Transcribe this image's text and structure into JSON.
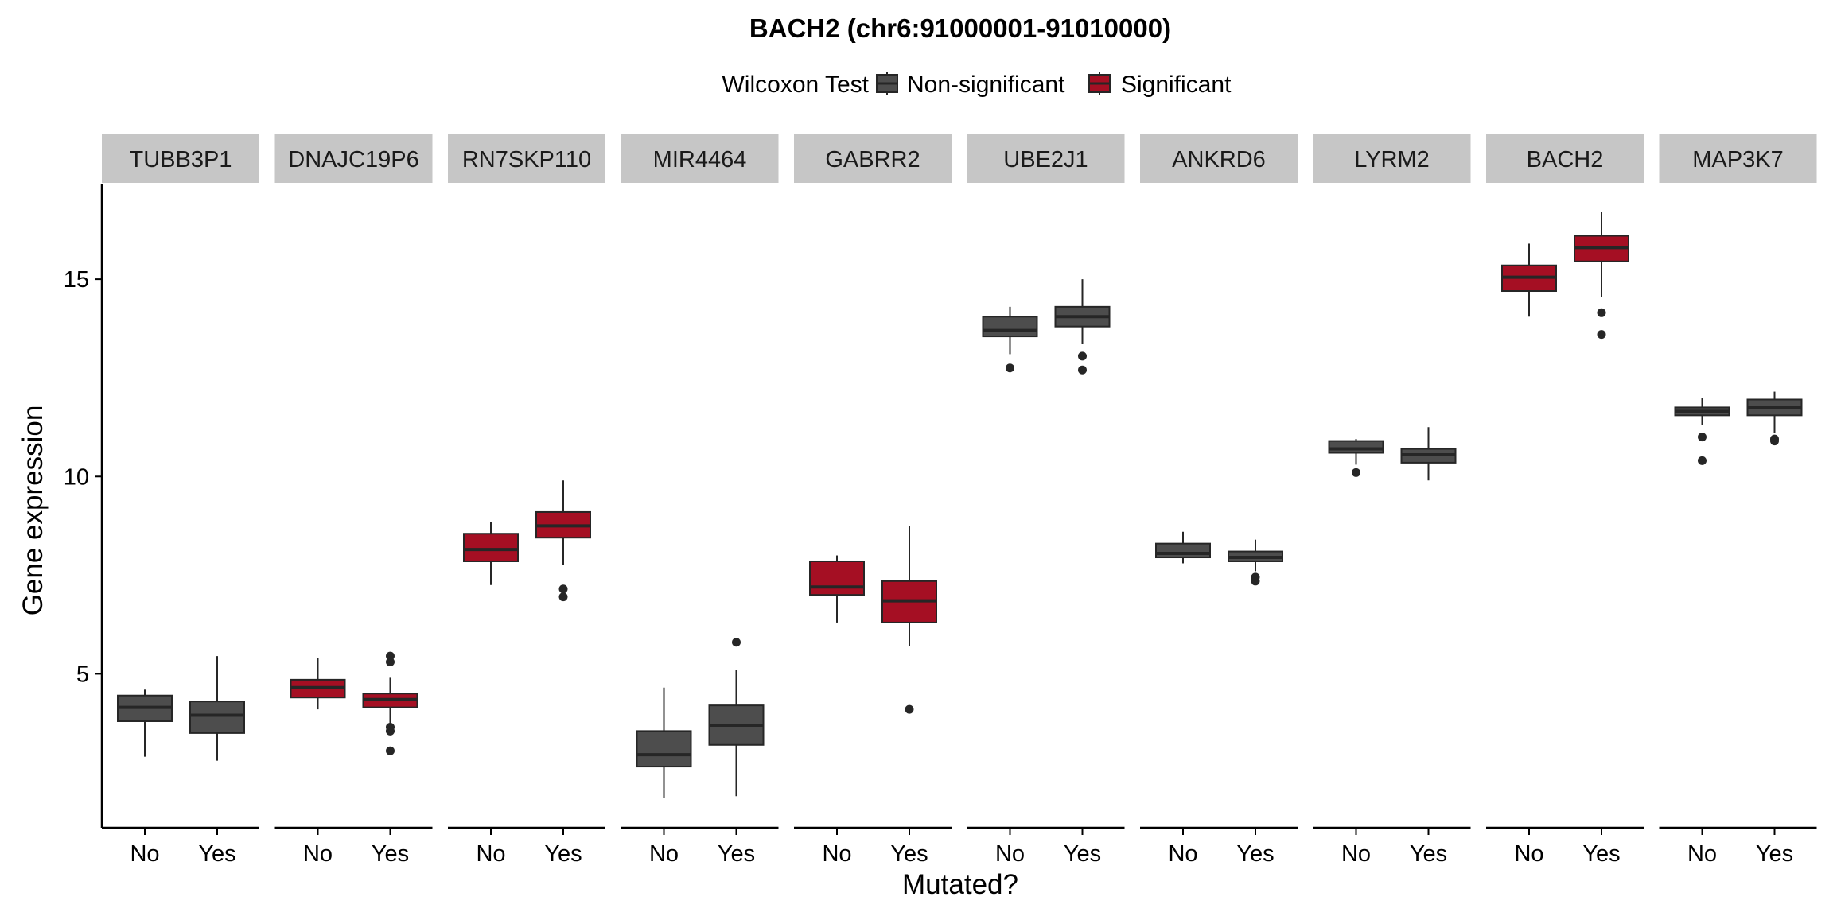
{
  "chart_data": {
    "type": "boxplot",
    "title": "BACH2 (chr6:91000001-91010000)",
    "xlabel": "Mutated?",
    "ylabel": "Gene expression",
    "ylim": [
      1.1,
      17.4
    ],
    "yticks": [
      5,
      10,
      15
    ],
    "ytick_labels": [
      "5",
      "10",
      "15"
    ],
    "grid": false,
    "legend": {
      "title": "Wilcoxon Test",
      "position": "top",
      "items": [
        {
          "label": "Non-significant",
          "color": "#4d4d4d"
        },
        {
          "label": "Significant",
          "color": "#a50f23"
        }
      ]
    },
    "categories": [
      "No",
      "Yes"
    ],
    "panels": [
      {
        "label": "TUBB3P1",
        "significant": false,
        "boxes": [
          {
            "category": "No",
            "min": 2.9,
            "q1": 3.8,
            "median": 4.15,
            "q3": 4.45,
            "max": 4.6,
            "outliers": []
          },
          {
            "category": "Yes",
            "min": 2.8,
            "q1": 3.5,
            "median": 3.95,
            "q3": 4.3,
            "max": 5.45,
            "outliers": []
          }
        ]
      },
      {
        "label": "DNAJC19P6",
        "significant": true,
        "boxes": [
          {
            "category": "No",
            "min": 4.1,
            "q1": 4.4,
            "median": 4.65,
            "q3": 4.85,
            "max": 5.4,
            "outliers": []
          },
          {
            "category": "Yes",
            "min": 3.7,
            "q1": 4.15,
            "median": 4.35,
            "q3": 4.5,
            "max": 4.9,
            "outliers": [
              5.45,
              5.3,
              3.65,
              3.55,
              3.05
            ]
          }
        ]
      },
      {
        "label": "RN7SKP110",
        "significant": true,
        "boxes": [
          {
            "category": "No",
            "min": 7.25,
            "q1": 7.85,
            "median": 8.15,
            "q3": 8.55,
            "max": 8.85,
            "outliers": []
          },
          {
            "category": "Yes",
            "min": 7.75,
            "q1": 8.45,
            "median": 8.75,
            "q3": 9.1,
            "max": 9.9,
            "outliers": [
              7.15,
              6.95
            ]
          }
        ]
      },
      {
        "label": "MIR4464",
        "significant": false,
        "boxes": [
          {
            "category": "No",
            "min": 1.85,
            "q1": 2.65,
            "median": 2.95,
            "q3": 3.55,
            "max": 4.65,
            "outliers": []
          },
          {
            "category": "Yes",
            "min": 1.9,
            "q1": 3.2,
            "median": 3.7,
            "q3": 4.2,
            "max": 5.1,
            "outliers": [
              5.8
            ]
          }
        ]
      },
      {
        "label": "GABRR2",
        "significant": true,
        "boxes": [
          {
            "category": "No",
            "min": 6.3,
            "q1": 7.0,
            "median": 7.2,
            "q3": 7.85,
            "max": 8.0,
            "outliers": []
          },
          {
            "category": "Yes",
            "min": 5.7,
            "q1": 6.3,
            "median": 6.85,
            "q3": 7.35,
            "max": 8.75,
            "outliers": [
              4.1
            ]
          }
        ]
      },
      {
        "label": "UBE2J1",
        "significant": false,
        "boxes": [
          {
            "category": "No",
            "min": 13.1,
            "q1": 13.55,
            "median": 13.7,
            "q3": 14.05,
            "max": 14.3,
            "outliers": [
              12.75
            ]
          },
          {
            "category": "Yes",
            "min": 13.35,
            "q1": 13.8,
            "median": 14.05,
            "q3": 14.3,
            "max": 15.0,
            "outliers": [
              13.05,
              12.7
            ]
          }
        ]
      },
      {
        "label": "ANKRD6",
        "significant": false,
        "boxes": [
          {
            "category": "No",
            "min": 7.8,
            "q1": 7.95,
            "median": 8.05,
            "q3": 8.3,
            "max": 8.6,
            "outliers": []
          },
          {
            "category": "Yes",
            "min": 7.6,
            "q1": 7.85,
            "median": 7.95,
            "q3": 8.1,
            "max": 8.4,
            "outliers": [
              7.45,
              7.35
            ]
          }
        ]
      },
      {
        "label": "LYRM2",
        "significant": false,
        "boxes": [
          {
            "category": "No",
            "min": 10.3,
            "q1": 10.6,
            "median": 10.7,
            "q3": 10.9,
            "max": 10.95,
            "outliers": [
              10.1
            ]
          },
          {
            "category": "Yes",
            "min": 9.9,
            "q1": 10.35,
            "median": 10.55,
            "q3": 10.7,
            "max": 11.25,
            "outliers": []
          }
        ]
      },
      {
        "label": "BACH2",
        "significant": true,
        "boxes": [
          {
            "category": "No",
            "min": 14.05,
            "q1": 14.7,
            "median": 15.05,
            "q3": 15.35,
            "max": 15.9,
            "outliers": []
          },
          {
            "category": "Yes",
            "min": 14.55,
            "q1": 15.45,
            "median": 15.8,
            "q3": 16.1,
            "max": 16.7,
            "outliers": [
              14.15,
              13.6
            ]
          }
        ]
      },
      {
        "label": "MAP3K7",
        "significant": false,
        "boxes": [
          {
            "category": "No",
            "min": 11.3,
            "q1": 11.55,
            "median": 11.65,
            "q3": 11.75,
            "max": 12.0,
            "outliers": [
              11.0,
              10.4
            ]
          },
          {
            "category": "Yes",
            "min": 11.1,
            "q1": 11.55,
            "median": 11.75,
            "q3": 11.95,
            "max": 12.15,
            "outliers": [
              10.95,
              10.9
            ]
          }
        ]
      }
    ]
  }
}
